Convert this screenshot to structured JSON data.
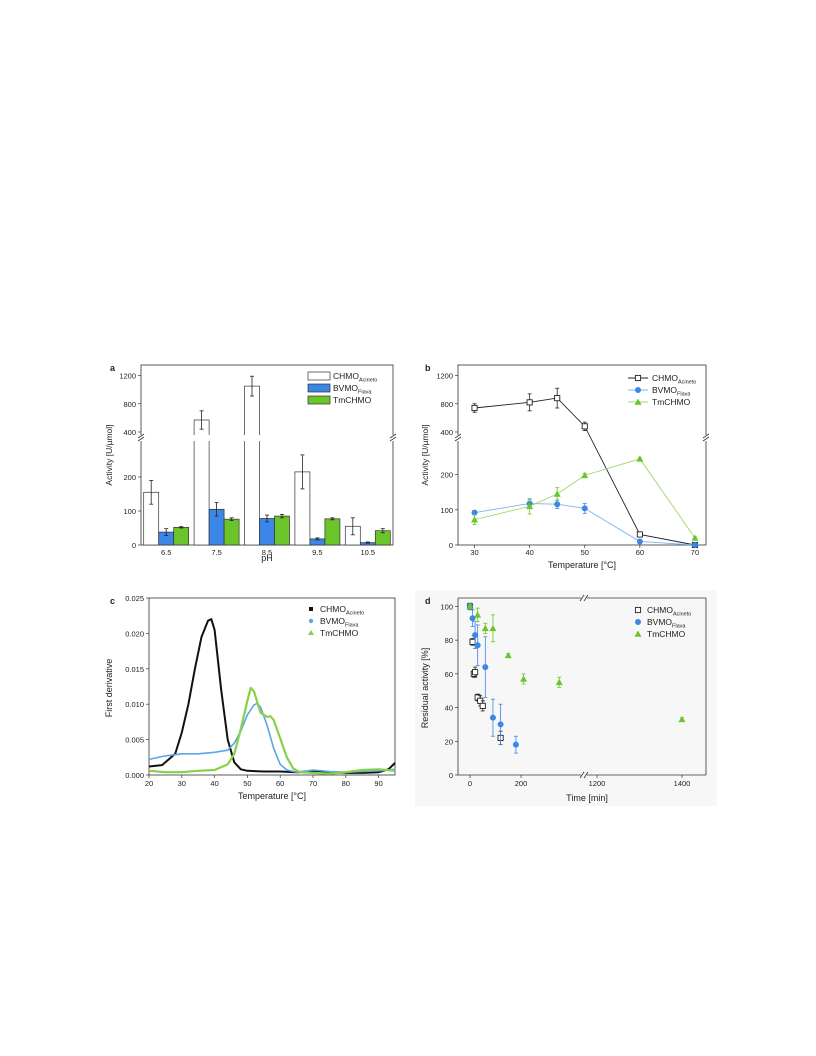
{
  "colors": {
    "chmo": "#222222",
    "bvmo": "#3b86e6",
    "tmchmo": "#6bc42a",
    "bvmo_light": "#5aa6e8",
    "tmchmo_light": "#86d04a",
    "panel_bg": "#f7f7f7"
  },
  "chart_data": [
    {
      "panel": "a",
      "type": "bar",
      "xlabel": "pH",
      "ylabel": "Activity [U/µmol]",
      "categories": [
        "6.5",
        "7.5",
        "8.5",
        "9.5",
        "10.5"
      ],
      "y_axis_broken": true,
      "y_lower_range": [
        0,
        300
      ],
      "y_lower_ticks": [
        "0",
        "100",
        "200"
      ],
      "y_upper_range": [
        400,
        1250
      ],
      "y_upper_ticks": [
        "400",
        "800",
        "1200"
      ],
      "legend_position": "top-right",
      "series": [
        {
          "name": "CHMO",
          "sub": "Acineto",
          "style": "open",
          "values": [
            155,
            570,
            1050,
            215,
            55
          ],
          "errors": [
            35,
            130,
            140,
            50,
            25
          ]
        },
        {
          "name": "BVMO",
          "sub": "Flava",
          "style": "blue",
          "values": [
            38,
            105,
            78,
            18,
            7
          ],
          "errors": [
            10,
            20,
            10,
            3,
            2
          ]
        },
        {
          "name": "TmCHMO",
          "sub": "",
          "style": "green",
          "values": [
            52,
            76,
            85,
            77,
            42
          ],
          "errors": [
            2,
            4,
            5,
            3,
            6
          ]
        }
      ]
    },
    {
      "panel": "b",
      "type": "line",
      "xlabel": "Temperature [°C]",
      "ylabel": "Activity [U/µmol]",
      "x_ticks": [
        "30",
        "40",
        "50",
        "60",
        "70"
      ],
      "x_range": [
        27,
        72
      ],
      "y_axis_broken": true,
      "y_lower_range": [
        0,
        290
      ],
      "y_lower_ticks": [
        "0",
        "100",
        "200"
      ],
      "y_upper_range": [
        400,
        1250
      ],
      "y_upper_ticks": [
        "400",
        "800",
        "1200"
      ],
      "legend_position": "top-right",
      "series": [
        {
          "name": "CHMO",
          "sub": "Acineto",
          "style": "open-square",
          "x": [
            30,
            40,
            45,
            50,
            60,
            70
          ],
          "y": [
            740,
            820,
            880,
            480,
            30,
            0
          ],
          "errors": [
            60,
            120,
            140,
            60,
            3,
            1
          ]
        },
        {
          "name": "BVMO",
          "sub": "Flava",
          "style": "blue-circle",
          "x": [
            30,
            40,
            45,
            50,
            60,
            70
          ],
          "y": [
            92,
            118,
            116,
            104,
            10,
            0
          ],
          "errors": [
            6,
            12,
            12,
            14,
            2,
            1
          ]
        },
        {
          "name": "TmCHMO",
          "sub": "",
          "style": "green-triangle",
          "x": [
            30,
            40,
            45,
            50,
            60,
            70
          ],
          "y": [
            72,
            110,
            145,
            198,
            245,
            20
          ],
          "errors": [
            14,
            22,
            18,
            6,
            3,
            3
          ]
        }
      ]
    },
    {
      "panel": "c",
      "type": "line",
      "xlabel": "Temperature [°C]",
      "ylabel": "First derivative",
      "x_ticks": [
        "20",
        "30",
        "40",
        "50",
        "60",
        "70",
        "80",
        "90"
      ],
      "x_range": [
        20,
        95
      ],
      "y_ticks": [
        "0.000",
        "0.005",
        "0.010",
        "0.015",
        "0.020",
        "0.025"
      ],
      "y_range": [
        0,
        0.025
      ],
      "legend_position": "top-right",
      "series": [
        {
          "name": "CHMO",
          "sub": "Acineto",
          "style": "black",
          "x": [
            20,
            24,
            28,
            30,
            32,
            34,
            36,
            38,
            39,
            40,
            42,
            44,
            46,
            48,
            50,
            55,
            60,
            65,
            70,
            75,
            80,
            85,
            90,
            93,
            95
          ],
          "y": [
            0.0012,
            0.0014,
            0.003,
            0.006,
            0.01,
            0.015,
            0.0195,
            0.0218,
            0.022,
            0.0205,
            0.012,
            0.005,
            0.0018,
            0.0008,
            0.0006,
            0.0005,
            0.0005,
            0.0004,
            0.0005,
            0.0004,
            0.0003,
            0.0003,
            0.0004,
            0.0008,
            0.0017
          ]
        },
        {
          "name": "BVMO",
          "sub": "Flava",
          "style": "blue",
          "x": [
            20,
            25,
            30,
            35,
            40,
            44,
            46,
            48,
            50,
            52,
            53,
            54,
            56,
            58,
            60,
            62,
            65,
            70,
            75,
            80,
            85,
            90,
            95
          ],
          "y": [
            0.0022,
            0.0027,
            0.003,
            0.003,
            0.0032,
            0.0035,
            0.0045,
            0.0062,
            0.0085,
            0.0099,
            0.0101,
            0.0096,
            0.007,
            0.0038,
            0.0015,
            0.0007,
            0.0004,
            0.0007,
            0.0005,
            0.0004,
            0.0005,
            0.0006,
            0.0008
          ]
        },
        {
          "name": "TmCHMO",
          "sub": "",
          "style": "green",
          "x": [
            20,
            25,
            30,
            35,
            40,
            44,
            46,
            48,
            50,
            51,
            52,
            54,
            56,
            57,
            58,
            60,
            62,
            64,
            66,
            70,
            75,
            80,
            85,
            90,
            95
          ],
          "y": [
            0.0006,
            0.0004,
            0.0004,
            0.0006,
            0.0007,
            0.0015,
            0.003,
            0.0065,
            0.0105,
            0.0123,
            0.0118,
            0.0088,
            0.0082,
            0.0083,
            0.0078,
            0.0052,
            0.0025,
            0.0009,
            0.0004,
            0.0003,
            0.0002,
            0.0004,
            0.0007,
            0.0008,
            0.0006
          ]
        }
      ]
    },
    {
      "panel": "d",
      "type": "scatter",
      "xlabel": "Time [min]",
      "ylabel": "Residual activity [%]",
      "x_axis_broken": true,
      "x_ticks": [
        "0",
        "200",
        "1200",
        "1400"
      ],
      "y_ticks": [
        "0",
        "20",
        "40",
        "60",
        "80",
        "100"
      ],
      "y_range": [
        0,
        105
      ],
      "legend_position": "top-right",
      "series": [
        {
          "name": "CHMO",
          "sub": "Acineto",
          "style": "open-square",
          "x": [
            0,
            10,
            15,
            20,
            30,
            40,
            50,
            120
          ],
          "y": [
            100,
            79,
            60,
            61,
            46,
            44,
            41,
            22
          ],
          "errors": [
            1,
            2,
            2,
            3,
            2,
            3,
            3,
            4
          ]
        },
        {
          "name": "BVMO",
          "sub": "Flava",
          "style": "blue-circle",
          "x": [
            0,
            10,
            20,
            30,
            60,
            90,
            120,
            180
          ],
          "y": [
            100,
            93,
            83,
            77,
            64,
            34,
            30,
            18
          ],
          "errors": [
            2,
            5,
            8,
            12,
            18,
            11,
            12,
            5
          ]
        },
        {
          "name": "TmCHMO",
          "sub": "",
          "style": "green-triangle",
          "x": [
            0,
            30,
            60,
            90,
            150,
            210,
            350,
            1400
          ],
          "y": [
            100,
            95,
            87,
            87,
            71,
            57,
            55,
            33
          ],
          "errors": [
            1,
            4,
            3,
            8,
            1,
            3,
            3,
            1
          ]
        }
      ]
    }
  ]
}
